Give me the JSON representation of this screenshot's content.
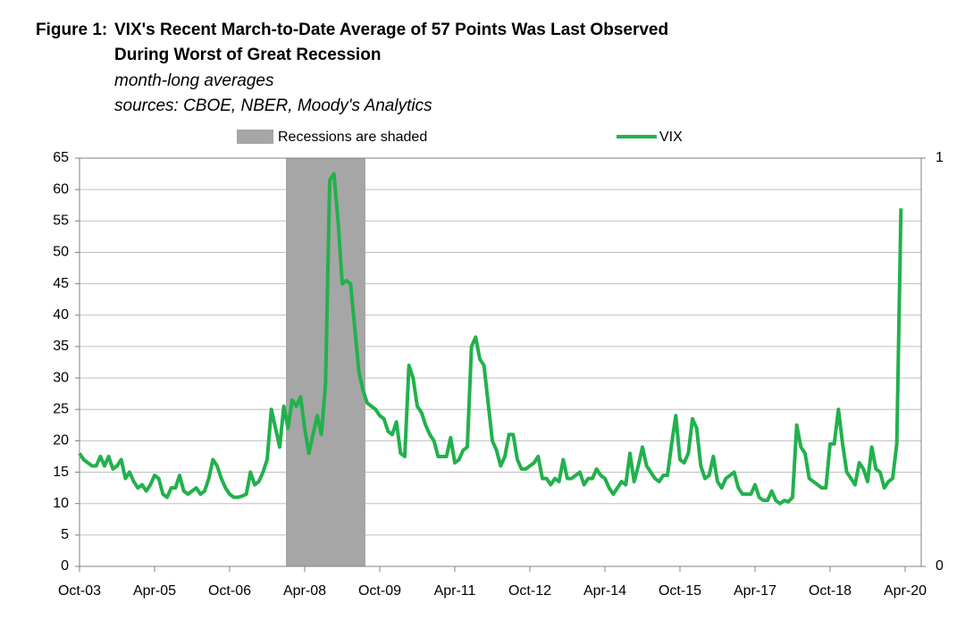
{
  "chart_data": {
    "type": "line",
    "figure_label": "Figure 1:",
    "title": [
      "VIX's Recent March-to-Date Average of 57 Points Was Last Observed",
      "During Worst of Great Recession"
    ],
    "subtitle": [
      "month-long averages",
      "sources: CBOE, NBER, Moody's Analytics"
    ],
    "categories": [
      "Oct-03",
      null,
      null,
      null,
      null,
      null,
      null,
      null,
      null,
      null,
      null,
      null,
      null,
      null,
      null,
      null,
      null,
      null,
      "Apr-05",
      null,
      null,
      null,
      null,
      null,
      null,
      null,
      null,
      null,
      null,
      null,
      null,
      null,
      null,
      null,
      null,
      null,
      "Oct-06",
      null,
      null,
      null,
      null,
      null,
      null,
      null,
      null,
      null,
      null,
      null,
      null,
      null,
      null,
      null,
      null,
      null,
      "Apr-08",
      null,
      null,
      null,
      null,
      null,
      null,
      null,
      null,
      null,
      null,
      null,
      null,
      null,
      null,
      null,
      null,
      null,
      "Oct-09",
      null,
      null,
      null,
      null,
      null,
      null,
      null,
      null,
      null,
      null,
      null,
      null,
      null,
      null,
      null,
      null,
      null,
      "Apr-11",
      null,
      null,
      null,
      null,
      null,
      null,
      null,
      null,
      null,
      null,
      null,
      null,
      null,
      null,
      null,
      null,
      null,
      "Oct-12",
      null,
      null,
      null,
      null,
      null,
      null,
      null,
      null,
      null,
      null,
      null,
      null,
      null,
      null,
      null,
      null,
      null,
      "Apr-14",
      null,
      null,
      null,
      null,
      null,
      null,
      null,
      null,
      null,
      null,
      null,
      null,
      null,
      null,
      null,
      null,
      null,
      "Oct-15",
      null,
      null,
      null,
      null,
      null,
      null,
      null,
      null,
      null,
      null,
      null,
      null,
      null,
      null,
      null,
      null,
      null,
      "Apr-17",
      null,
      null,
      null,
      null,
      null,
      null,
      null,
      null,
      null,
      null,
      null,
      null,
      null,
      null,
      null,
      null,
      null,
      "Oct-18",
      null,
      null,
      null,
      null,
      null,
      null,
      null,
      null,
      null,
      null,
      null,
      null,
      null,
      null,
      null,
      null,
      null,
      "Apr-20"
    ],
    "series": [
      {
        "name": "Recessions are shaded",
        "color": "#a6a6a6",
        "axis": "y2",
        "shade": true,
        "values": [
          0,
          0,
          0,
          0,
          0,
          0,
          0,
          0,
          0,
          0,
          0,
          0,
          0,
          0,
          0,
          0,
          0,
          0,
          0,
          0,
          0,
          0,
          0,
          0,
          0,
          0,
          0,
          0,
          0,
          0,
          0,
          0,
          0,
          0,
          0,
          0,
          0,
          0,
          0,
          0,
          0,
          0,
          0,
          0,
          0,
          0,
          0,
          0,
          0,
          0,
          1,
          1,
          1,
          1,
          1,
          1,
          1,
          1,
          1,
          1,
          1,
          1,
          1,
          1,
          1,
          1,
          1,
          1,
          1,
          0,
          0,
          0,
          0,
          0,
          0,
          0,
          0,
          0,
          0,
          0,
          0,
          0,
          0,
          0,
          0,
          0,
          0,
          0,
          0,
          0,
          0,
          0,
          0,
          0,
          0,
          0,
          0,
          0,
          0,
          0,
          0,
          0,
          0,
          0,
          0,
          0,
          0,
          0,
          0,
          0,
          0,
          0,
          0,
          0,
          0,
          0,
          0,
          0,
          0,
          0,
          0,
          0,
          0,
          0,
          0,
          0,
          0,
          0,
          0,
          0,
          0,
          0,
          0,
          0,
          0,
          0,
          0,
          0,
          0,
          0,
          0,
          0,
          0,
          0,
          0,
          0,
          0,
          0,
          0,
          0,
          0,
          0,
          0,
          0,
          0,
          0,
          0,
          0,
          0,
          0,
          0,
          0,
          0,
          0,
          0,
          0,
          0,
          0,
          0,
          0,
          0,
          0,
          0,
          0,
          0,
          0,
          0,
          0,
          0,
          0,
          0,
          0,
          0,
          0,
          0,
          0,
          0,
          0,
          0,
          0,
          0,
          0,
          0,
          0,
          0,
          0,
          0,
          0,
          0
        ]
      },
      {
        "name": "VIX",
        "color": "#22b14c",
        "values": [
          18,
          17,
          16.5,
          16,
          16,
          17.5,
          16,
          17.5,
          15.5,
          16,
          17,
          14,
          15,
          13.5,
          12.5,
          13,
          12,
          13,
          14.5,
          14,
          11.5,
          11,
          12.5,
          12.5,
          14.5,
          12,
          11.5,
          12,
          12.5,
          11.5,
          12,
          14,
          17,
          16,
          14,
          12.5,
          11.5,
          11,
          11,
          11.2,
          11.5,
          15,
          13,
          13.5,
          15,
          17,
          25,
          22,
          19,
          25.5,
          22,
          26.5,
          25.5,
          27,
          22,
          18,
          21,
          24,
          21,
          29,
          61.5,
          62.5,
          55,
          45,
          45.5,
          45,
          38,
          31,
          28,
          26,
          25.5,
          25,
          24,
          23.5,
          21.5,
          21,
          23,
          18,
          17.5,
          32,
          30,
          25.5,
          24.5,
          22.5,
          21,
          20,
          17.5,
          17.5,
          17.5,
          20.5,
          16.5,
          17,
          18.5,
          19,
          35,
          36.5,
          33,
          32,
          26,
          20,
          18.5,
          16,
          17.5,
          21,
          21,
          17,
          15.5,
          15.5,
          16,
          16.5,
          17.5,
          14,
          14,
          13,
          14,
          13.5,
          17,
          14,
          14,
          14.5,
          15,
          13,
          14,
          14,
          15.5,
          14.5,
          14,
          12.5,
          11.5,
          12.5,
          13.5,
          13,
          18,
          13.5,
          16,
          19,
          16,
          15,
          14,
          13.5,
          14.5,
          14.5,
          19.5,
          24,
          17,
          16.5,
          18,
          23.5,
          22,
          16,
          14,
          14.5,
          17.5,
          13.5,
          12.5,
          14,
          14.5,
          15,
          12.5,
          11.5,
          11.5,
          11.5,
          13,
          11,
          10.5,
          10.5,
          12,
          10.5,
          10,
          10.5,
          10.3,
          11,
          22.5,
          19,
          18,
          14,
          13.5,
          13,
          12.5,
          12.5,
          19.5,
          19.5,
          25,
          19.5,
          15,
          14,
          13,
          16.5,
          15.5,
          13.5,
          19,
          15.5,
          15,
          12.5,
          13.5,
          14,
          19.5,
          57,
          null
        ]
      }
    ],
    "ylim": [
      0,
      65
    ],
    "yticks": [
      0,
      5,
      10,
      15,
      20,
      25,
      30,
      35,
      40,
      45,
      50,
      55,
      60,
      65
    ],
    "y2lim": [
      0,
      1
    ],
    "y2ticks": [
      0,
      1
    ],
    "grid": true
  }
}
